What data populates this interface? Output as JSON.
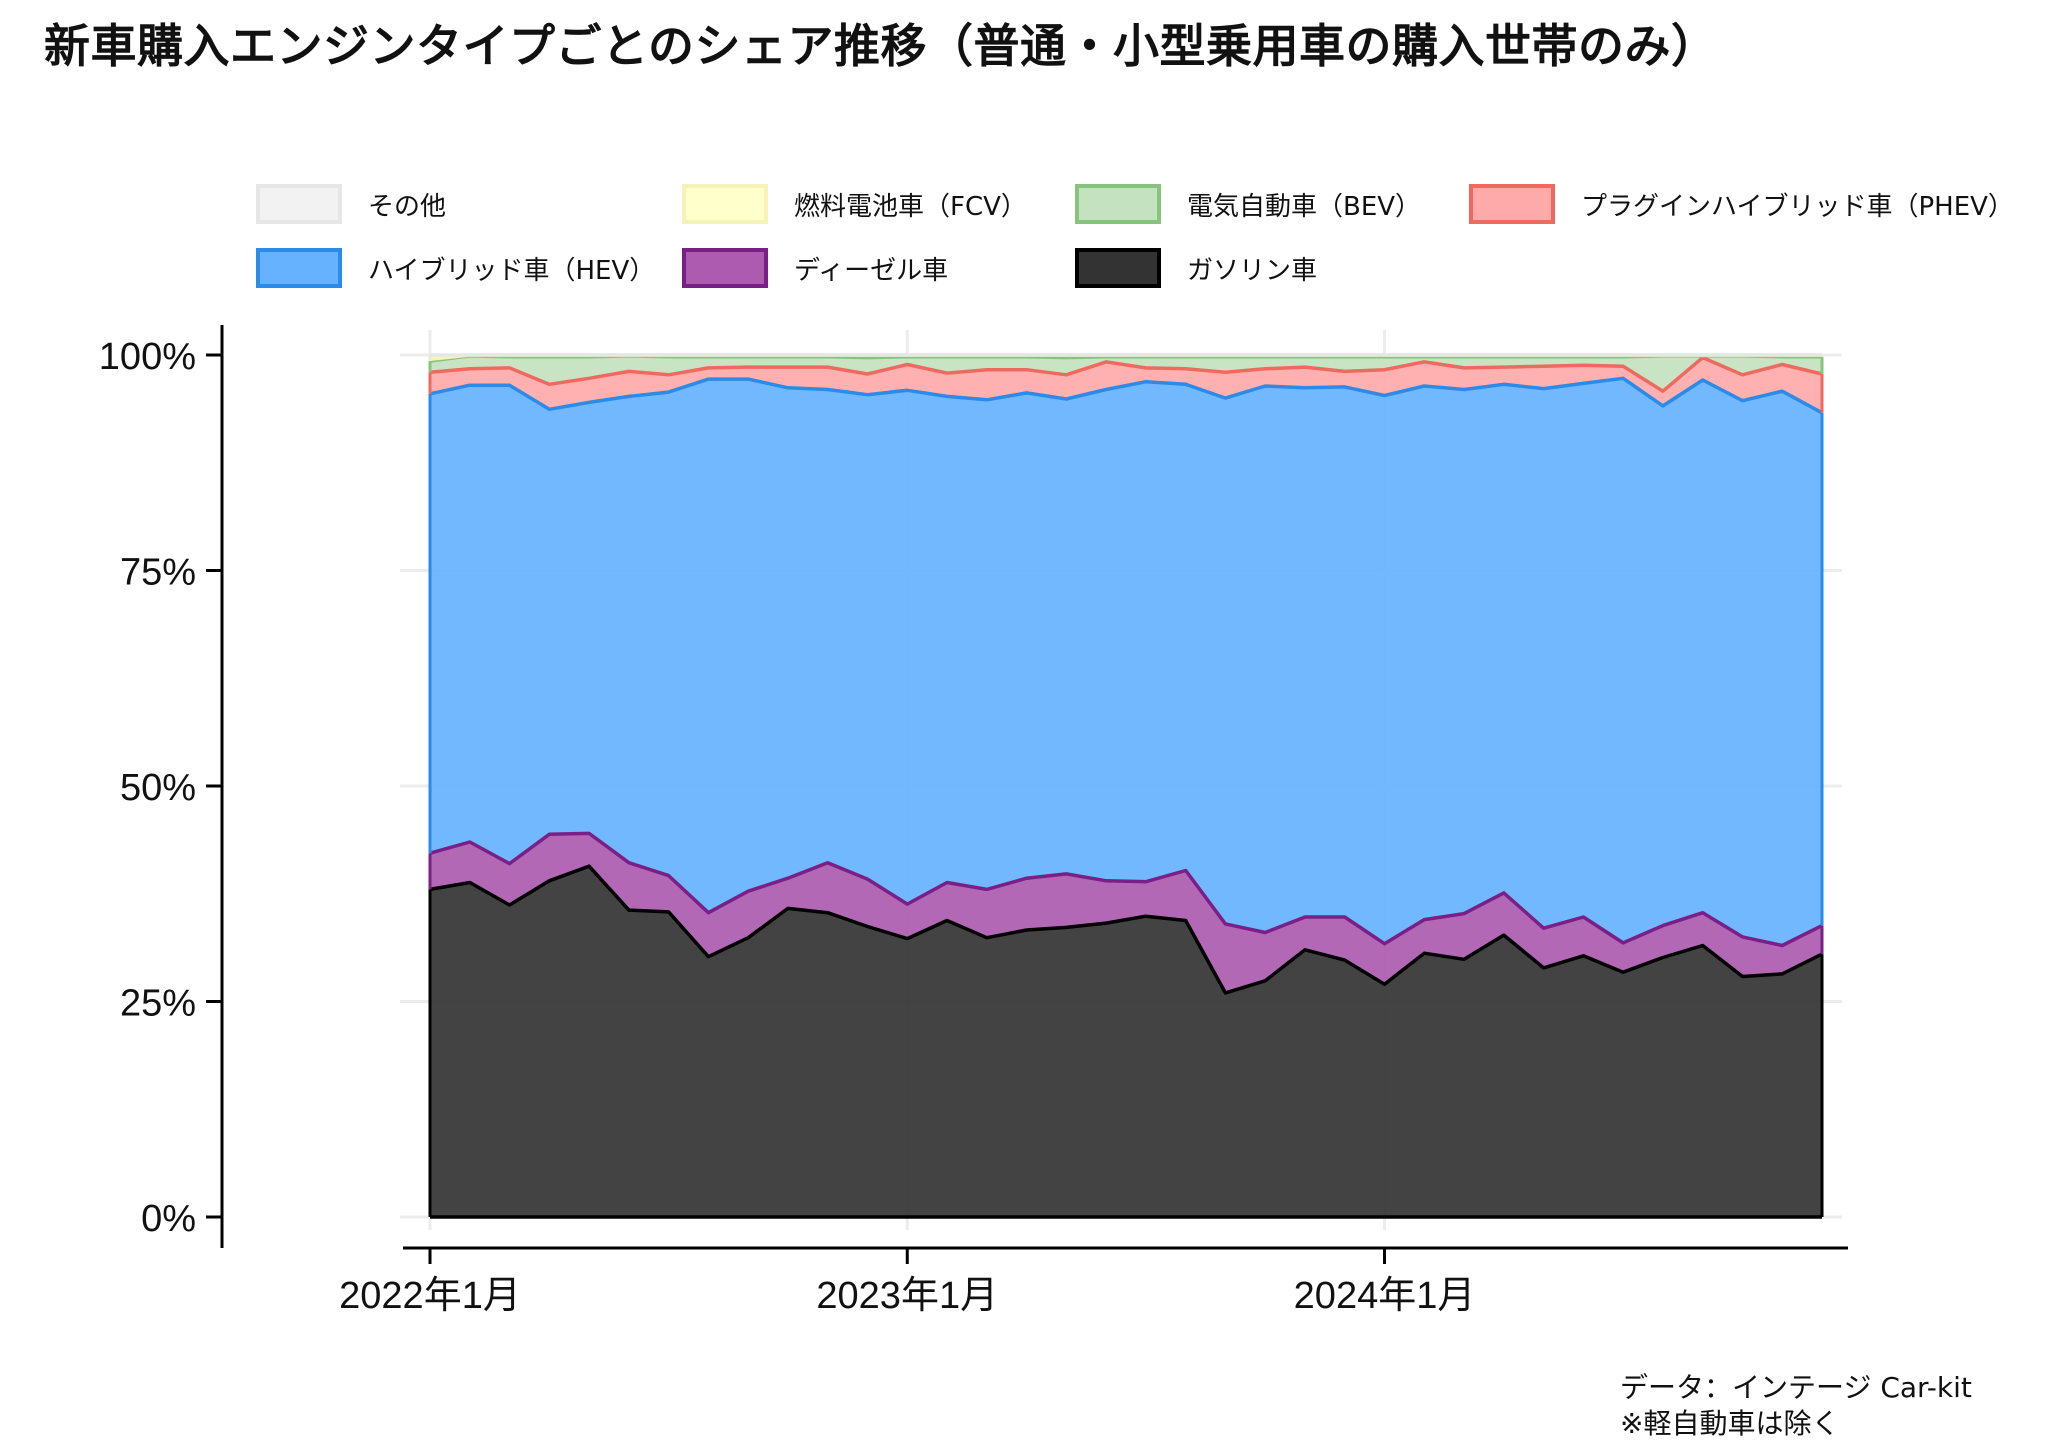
{
  "title": "新車購入エンジンタイプごとのシェア推移（普通・小型乗用車の購入世帯のみ）",
  "source_lines": [
    "データ：インテージ Car-kit",
    "※軽自動車は除く"
  ],
  "legend": [
    {
      "key": "other",
      "label": "その他",
      "fill": "#f2f2f2",
      "stroke": "#e6e6e6"
    },
    {
      "key": "fcv",
      "label": "燃料電池車（FCV）",
      "fill": "#ffffcc",
      "stroke": "#f7f3b8"
    },
    {
      "key": "bev",
      "label": "電気自動車（BEV）",
      "fill": "#c4e2c0",
      "stroke": "#86c47e"
    },
    {
      "key": "phev",
      "label": "プラグインハイブリッド車（PHEV）",
      "fill": "#ffaaaa",
      "stroke": "#ef6a5e"
    },
    {
      "key": "hev",
      "label": "ハイブリッド車（HEV）",
      "fill": "#66b2ff",
      "stroke": "#2b8be8"
    },
    {
      "key": "diesel",
      "label": "ディーゼル車",
      "fill": "#ad5bb0",
      "stroke": "#7a1f86"
    },
    {
      "key": "gasoline",
      "label": "ガソリン車",
      "fill": "#333333",
      "stroke": "#000000"
    }
  ],
  "chart_data": {
    "type": "area",
    "stacked": true,
    "y_axis": {
      "ticks": [
        0,
        25,
        50,
        75,
        100
      ],
      "tick_labels": [
        "0%",
        "25%",
        "50%",
        "75%",
        "100%"
      ],
      "ylim": [
        0,
        100
      ]
    },
    "x_axis": {
      "tick_labels": [
        "2022年1月",
        "2023年1月",
        "2024年1月"
      ],
      "tick_months": [
        "2022-01",
        "2023-01",
        "2024-01"
      ]
    },
    "x": [
      "2022-01",
      "2022-02",
      "2022-03",
      "2022-04",
      "2022-05",
      "2022-06",
      "2022-07",
      "2022-08",
      "2022-09",
      "2022-10",
      "2022-11",
      "2022-12",
      "2023-01",
      "2023-02",
      "2023-03",
      "2023-04",
      "2023-05",
      "2023-06",
      "2023-07",
      "2023-08",
      "2023-09",
      "2023-10",
      "2023-11",
      "2023-12",
      "2024-01",
      "2024-02",
      "2024-03",
      "2024-04",
      "2024-05",
      "2024-06",
      "2024-07",
      "2024-08",
      "2024-09",
      "2024-10",
      "2024-11",
      "2024-12"
    ],
    "series": [
      {
        "name": "ガソリン車",
        "key": "gasoline",
        "values": [
          38.0,
          38.8,
          36.2,
          39.0,
          40.7,
          35.6,
          35.4,
          30.2,
          32.4,
          35.8,
          35.3,
          33.7,
          32.3,
          34.4,
          32.4,
          33.3,
          33.6,
          34.1,
          34.9,
          34.4,
          26.0,
          27.4,
          31.0,
          29.8,
          27.0,
          30.6,
          29.9,
          32.7,
          28.9,
          30.3,
          28.4,
          30.1,
          31.5,
          27.9,
          28.2,
          30.5
        ]
      },
      {
        "name": "ディーゼル車",
        "key": "diesel",
        "values": [
          4.2,
          4.7,
          4.8,
          5.4,
          3.8,
          5.5,
          4.2,
          5.1,
          5.4,
          3.5,
          5.8,
          5.5,
          4.0,
          4.4,
          5.6,
          6.0,
          6.2,
          4.9,
          4.0,
          5.8,
          8.0,
          5.6,
          3.8,
          5.0,
          4.7,
          3.9,
          5.3,
          4.9,
          4.6,
          4.5,
          3.4,
          3.7,
          3.8,
          4.6,
          3.3,
          3.3
        ]
      },
      {
        "name": "ハイブリッド車（HEV）",
        "key": "hev",
        "values": [
          53.3,
          53.0,
          55.5,
          49.3,
          50.0,
          54.1,
          56.1,
          61.9,
          59.4,
          56.9,
          54.9,
          56.2,
          59.6,
          56.4,
          56.8,
          56.3,
          55.1,
          57.0,
          58.0,
          56.4,
          61.0,
          63.4,
          61.4,
          61.5,
          63.6,
          61.9,
          60.8,
          59.0,
          62.6,
          61.9,
          65.5,
          60.3,
          61.8,
          62.2,
          64.3,
          59.5
        ]
      },
      {
        "name": "プラグインハイブリッド車（PHEV）",
        "key": "phev",
        "values": [
          2.5,
          1.9,
          2.0,
          2.9,
          2.8,
          2.9,
          2.0,
          1.3,
          1.4,
          2.4,
          2.6,
          2.4,
          3.0,
          2.7,
          3.5,
          2.7,
          2.8,
          3.2,
          1.6,
          1.8,
          3.0,
          2.0,
          2.4,
          1.8,
          3.0,
          2.8,
          2.5,
          2.0,
          2.6,
          2.1,
          1.4,
          1.7,
          2.6,
          3.0,
          3.1,
          4.5
        ]
      },
      {
        "name": "電気自動車（BEV）",
        "key": "bev",
        "values": [
          1.3,
          1.5,
          1.3,
          3.2,
          2.5,
          1.8,
          2.1,
          1.3,
          1.2,
          1.2,
          1.2,
          1.9,
          0.9,
          1.9,
          1.5,
          1.5,
          2.0,
          0.6,
          1.3,
          1.4,
          1.8,
          1.4,
          1.2,
          1.7,
          1.5,
          0.6,
          1.3,
          1.2,
          1.1,
          1.0,
          1.1,
          4.1,
          0.2,
          2.2,
          0.9,
          2.0
        ]
      },
      {
        "name": "燃料電池車（FCV）",
        "key": "fcv",
        "values": [
          0.2,
          0.1,
          0.2,
          0.2,
          0.2,
          0.1,
          0.2,
          0.2,
          0.2,
          0.2,
          0.2,
          0.3,
          0.2,
          0.2,
          0.2,
          0.2,
          0.3,
          0.2,
          0.2,
          0.2,
          0.2,
          0.2,
          0.2,
          0.2,
          0.2,
          0.2,
          0.2,
          0.2,
          0.2,
          0.2,
          0.2,
          0.1,
          0.1,
          0.1,
          0.2,
          0.2
        ]
      },
      {
        "name": "その他",
        "key": "other",
        "values": [
          0.5,
          0.0,
          0.0,
          0.0,
          0.0,
          0.0,
          0.0,
          0.0,
          0.0,
          0.0,
          0.0,
          0.0,
          0.0,
          0.0,
          0.0,
          0.0,
          0.0,
          0.0,
          0.0,
          0.0,
          0.0,
          0.0,
          0.0,
          0.0,
          0.0,
          0.0,
          0.0,
          0.0,
          0.0,
          0.0,
          0.0,
          0.0,
          0.0,
          0.0,
          0.0,
          0.0
        ]
      }
    ]
  }
}
